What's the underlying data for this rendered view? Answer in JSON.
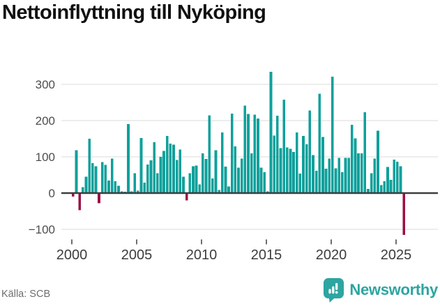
{
  "title": "Nettoinflyttning till Nyköping",
  "source": "Källa: SCB",
  "brand": {
    "name": "Newsworthy"
  },
  "chart_data": {
    "type": "bar",
    "title": "Nettoinflyttning till Nyköping",
    "x_tick_years": [
      2000,
      2005,
      2010,
      2015,
      2020,
      2025
    ],
    "y_ticks": [
      -100,
      0,
      100,
      200,
      300
    ],
    "ylim": [
      -130,
      350
    ],
    "grid": "horizontal",
    "legend": "none",
    "first_quarter": "2000 Q1",
    "last_quarter": "2025 Q3",
    "series_by_year": [
      {
        "year": 2000,
        "q": [
          -10,
          118,
          -47,
          16
        ]
      },
      {
        "year": 2001,
        "q": [
          45,
          150,
          83,
          74
        ]
      },
      {
        "year": 2002,
        "q": [
          -28,
          86,
          78,
          35
        ]
      },
      {
        "year": 2003,
        "q": [
          95,
          33,
          20,
          5
        ]
      },
      {
        "year": 2004,
        "q": [
          4,
          190,
          5,
          55
        ]
      },
      {
        "year": 2005,
        "q": [
          7,
          152,
          29,
          79
        ]
      },
      {
        "year": 2006,
        "q": [
          90,
          140,
          55,
          100
        ]
      },
      {
        "year": 2007,
        "q": [
          116,
          158,
          137,
          134
        ]
      },
      {
        "year": 2008,
        "q": [
          91,
          120,
          45,
          -20
        ]
      },
      {
        "year": 2009,
        "q": [
          55,
          74,
          76,
          24
        ]
      },
      {
        "year": 2010,
        "q": [
          110,
          94,
          214,
          40
        ]
      },
      {
        "year": 2011,
        "q": [
          118,
          9,
          167,
          73
        ]
      },
      {
        "year": 2012,
        "q": [
          18,
          219,
          129,
          70
        ]
      },
      {
        "year": 2013,
        "q": [
          95,
          241,
          218,
          110
        ]
      },
      {
        "year": 2014,
        "q": [
          216,
          206,
          70,
          58
        ]
      },
      {
        "year": 2015,
        "q": [
          5,
          335,
          159,
          213
        ]
      },
      {
        "year": 2016,
        "q": [
          124,
          258,
          126,
          122
        ]
      },
      {
        "year": 2017,
        "q": [
          113,
          167,
          54,
          158
        ]
      },
      {
        "year": 2018,
        "q": [
          135,
          228,
          105,
          62
        ]
      },
      {
        "year": 2019,
        "q": [
          274,
          155,
          67,
          95
        ]
      },
      {
        "year": 2020,
        "q": [
          321,
          68,
          97,
          58
        ]
      },
      {
        "year": 2021,
        "q": [
          97,
          97,
          188,
          151
        ]
      },
      {
        "year": 2022,
        "q": [
          110,
          110,
          223,
          12
        ]
      },
      {
        "year": 2023,
        "q": [
          55,
          95,
          172,
          22
        ]
      },
      {
        "year": 2024,
        "q": [
          33,
          72,
          37,
          92
        ]
      },
      {
        "year": 2025,
        "q": [
          87,
          74,
          -115
        ]
      }
    ],
    "colors": {
      "positive": "#0fa09b",
      "negative": "#9b1045",
      "grid": "#e2e2e2",
      "axis": "#3d3d3d",
      "y_label": "#4d4d4d",
      "x_label": "#3d3d3d",
      "brand": "#2da5a1"
    }
  }
}
